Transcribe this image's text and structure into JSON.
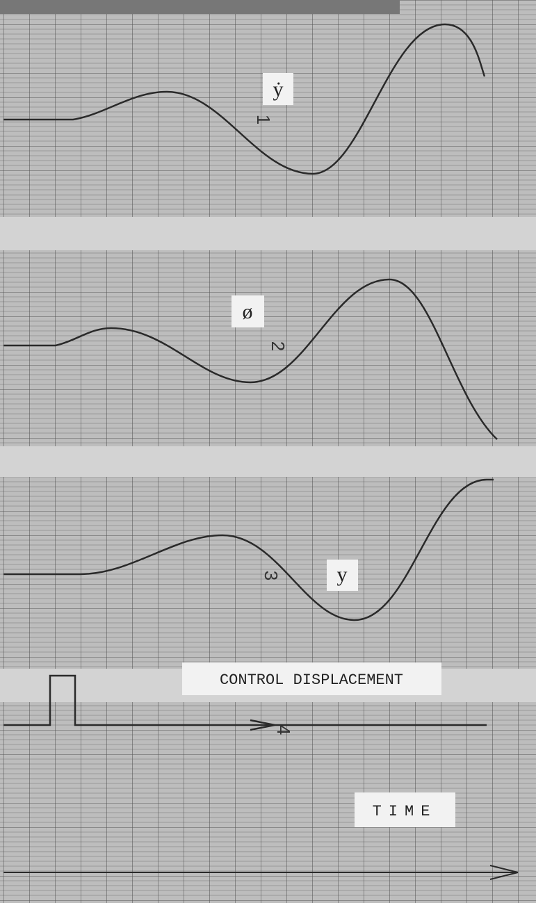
{
  "panels": [
    {
      "label": "ẏ",
      "number": "1"
    },
    {
      "label": "ø",
      "number": "2"
    },
    {
      "label": "y",
      "number": "3"
    },
    {
      "label": "CONTROL DISPLACEMENT",
      "number": "4"
    }
  ],
  "axis": {
    "label": "TIME"
  }
}
